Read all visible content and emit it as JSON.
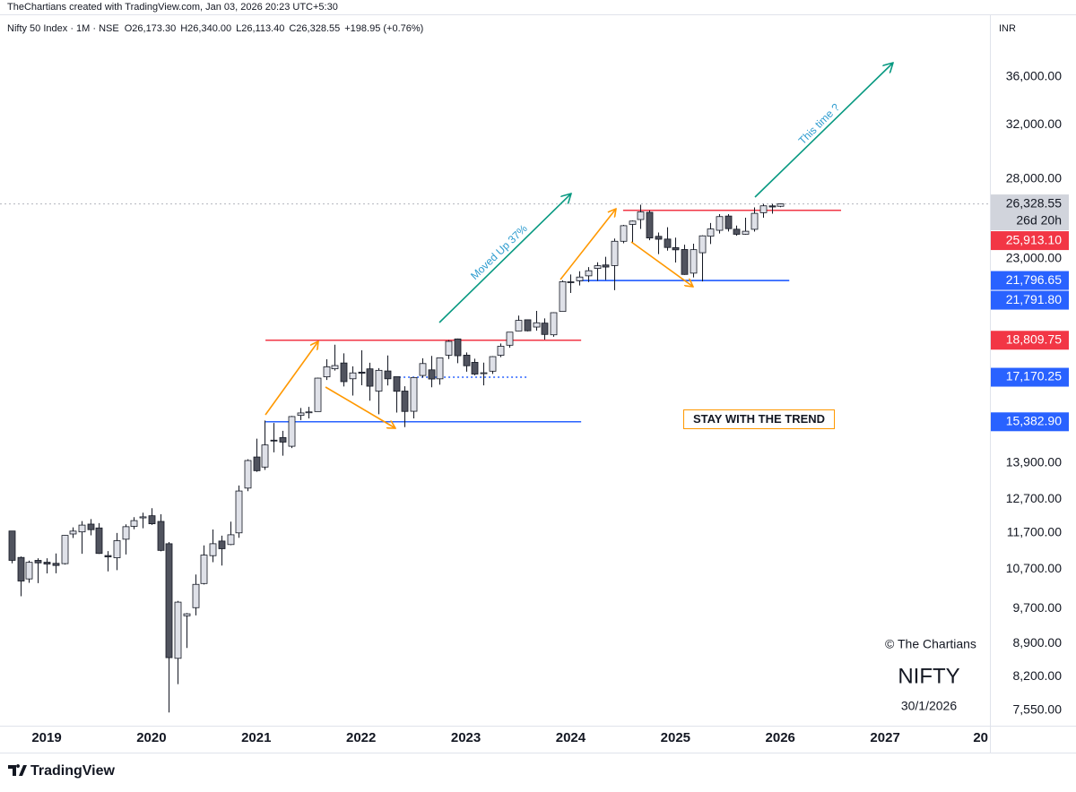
{
  "chart_data": {
    "type": "candlestick",
    "attribution": "TheChartians created with TradingView.com, Jan 03, 2026 20:23 UTC+5:30",
    "symbol": "Nifty 50 Index · 1M · NSE",
    "header_quote": [
      "O26,173.30",
      "H26,340.00",
      "L26,113.40",
      "C26,328.55",
      "+198.95 (+0.76%)"
    ],
    "currency": "INR",
    "annotations": [
      "Moved Up 37%",
      "This time ?",
      "STAY WITH THE TREND"
    ],
    "watermark": [
      "© The Chartians",
      "NIFTY",
      "30/1/2026"
    ],
    "footer": "TradingView",
    "log_scale": true,
    "grid": false,
    "xlim": [
      2018.555,
      2028.0
    ],
    "xticks": [
      2019,
      2020,
      2021,
      2022,
      2023,
      2024,
      2025,
      2026,
      2027,
      {
        "value": 2028,
        "label": "20"
      }
    ],
    "ylim": [
      7270,
      41650
    ],
    "yticks": [
      {
        "value": 7550,
        "label": "7,550.00"
      },
      {
        "value": 8200,
        "label": "8,200.00"
      },
      {
        "value": 8900,
        "label": "8,900.00"
      },
      {
        "value": 9700,
        "label": "9,700.00"
      },
      {
        "value": 10700,
        "label": "10,700.00"
      },
      {
        "value": 11700,
        "label": "11,700.00"
      },
      {
        "value": 12700,
        "label": "12,700.00"
      },
      {
        "value": 13900,
        "label": "13,900.00"
      },
      {
        "value": 23000,
        "label": "23,000.00"
      },
      {
        "value": 28000,
        "label": "28,000.00"
      },
      {
        "value": 32000,
        "label": "32,000.00"
      },
      {
        "value": 36000,
        "label": "36,000.00"
      }
    ],
    "up_color": "#dfe1e8",
    "down_color": "#50535e",
    "outline_color": "#131722",
    "price_labels": [
      {
        "value": 26328.55,
        "label": "26,328.55",
        "sub": "26d 20h",
        "color": "#d1d4dc",
        "text_color": "#131722",
        "line": "dotted"
      },
      {
        "value": 25913.1,
        "label": "25,913.10",
        "color": "#f23645",
        "text_color": "#ffffff",
        "line": "solid",
        "from": 2024.5,
        "to": 2026.58
      },
      {
        "value": 21796.65,
        "label": "21,796.65",
        "color": "#2962ff",
        "text_color": "#ffffff",
        "line": "solid",
        "from": 2024.074,
        "to": 2026.085
      },
      {
        "value": 21791.8,
        "label": "21,791.80",
        "color": "#2962ff",
        "text_color": "#ffffff",
        "line": "solid",
        "from": 2024.074,
        "to": 2026.085
      },
      {
        "value": 18809.75,
        "label": "18,809.75",
        "color": "#f23645",
        "text_color": "#ffffff",
        "line": "solid",
        "from": 2021.088,
        "to": 2024.1
      },
      {
        "value": 17170.25,
        "label": "17,170.25",
        "color": "#2962ff",
        "text_color": "#ffffff",
        "line": "dotted",
        "from": 2022.32,
        "to": 2023.586
      },
      {
        "value": 15382.9,
        "label": "15,382.90",
        "color": "#2962ff",
        "text_color": "#ffffff",
        "line": "solid",
        "from": 2021.088,
        "to": 2024.1
      }
    ],
    "x": [
      2018.667,
      2018.75,
      2018.833,
      2018.917,
      2019.0,
      2019.083,
      2019.167,
      2019.25,
      2019.333,
      2019.417,
      2019.5,
      2019.583,
      2019.667,
      2019.75,
      2019.833,
      2019.917,
      2020.0,
      2020.083,
      2020.167,
      2020.25,
      2020.333,
      2020.417,
      2020.5,
      2020.583,
      2020.667,
      2020.75,
      2020.833,
      2020.917,
      2021.0,
      2021.083,
      2021.167,
      2021.25,
      2021.333,
      2021.417,
      2021.5,
      2021.583,
      2021.667,
      2021.75,
      2021.833,
      2021.917,
      2022.0,
      2022.083,
      2022.167,
      2022.25,
      2022.333,
      2022.417,
      2022.5,
      2022.583,
      2022.667,
      2022.75,
      2022.833,
      2022.917,
      2023.0,
      2023.083,
      2023.167,
      2023.25,
      2023.333,
      2023.417,
      2023.5,
      2023.583,
      2023.667,
      2023.75,
      2023.833,
      2023.917,
      2024.0,
      2024.083,
      2024.167,
      2024.25,
      2024.333,
      2024.417,
      2024.5,
      2024.583,
      2024.667,
      2024.75,
      2024.833,
      2024.917,
      2025.0,
      2025.083,
      2025.167,
      2025.25,
      2025.333,
      2025.417,
      2025.5,
      2025.583,
      2025.667,
      2025.75,
      2025.833,
      2025.917,
      2026.0
    ],
    "open": [
      11751,
      11009,
      10441,
      10930,
      10881,
      10851,
      10842,
      11665,
      11725,
      11953,
      11840,
      11061,
      11000,
      11515,
      11886,
      12137,
      12202,
      12032,
      11388,
      8584,
      9533,
      9726,
      10323,
      11057,
      11464,
      11365,
      11697,
      13062,
      14104,
      13758,
      14702,
      14798,
      14482,
      15630,
      15755,
      15776,
      17186,
      17531,
      17784,
      17104,
      17388,
      17529,
      16593,
      17437,
      17193,
      16594,
      15787,
      17244,
      17486,
      17102,
      18130,
      18871,
      18131,
      17812,
      17360,
      17427,
      18124,
      18580,
      19246,
      19784,
      19432,
      19622,
      19064,
      20194,
      21727,
      21780,
      22048,
      22455,
      22648,
      22614,
      24010,
      25030,
      25333,
      25788,
      24304,
      24141,
      23637,
      23528,
      22195,
      23341,
      24311,
      24669,
      25551,
      24735,
      24433,
      24729,
      25764,
      26200,
      26173.3
    ],
    "high": [
      11751,
      11035,
      10922,
      10985,
      10987,
      11118,
      11630,
      11856,
      12041,
      12103,
      11981,
      11181,
      11695,
      11945,
      12159,
      12294,
      12431,
      12246,
      11434,
      9889,
      9598,
      10554,
      11341,
      11794,
      11618,
      12025,
      13146,
      14024,
      14754,
      15432,
      15337,
      15045,
      15607,
      15916,
      15962,
      17153,
      17947,
      18604,
      18210,
      17639,
      18350,
      17794,
      17559,
      18115,
      17132,
      16794,
      17172,
      17992,
      18096,
      18022,
      18816,
      18887,
      18251,
      17972,
      17799,
      18089,
      18662,
      19201,
      19991,
      19796,
      20222,
      19849,
      20158,
      21801,
      22124,
      22297,
      22526,
      22795,
      23111,
      24174,
      24999,
      25268,
      26277,
      25908,
      24538,
      24858,
      24226,
      23807,
      23870,
      24365,
      25116,
      25669,
      25669,
      24956,
      25449,
      26104,
      26325,
      26326,
      26340.0
    ],
    "low": [
      10850,
      10005,
      10341,
      10333,
      10583,
      10586,
      10817,
      11549,
      11108,
      11625,
      11107,
      10637,
      10670,
      11090,
      11802,
      11832,
      11929,
      11175,
      7511,
      8055,
      8807,
      9544,
      10299,
      10882,
      10790,
      11347,
      11557,
      12963,
      13597,
      13662,
      14265,
      14151,
      14416,
      15450,
      15513,
      15776,
      17055,
      17452,
      16782,
      16410,
      16836,
      16203,
      15671,
      16825,
      15735,
      15183,
      15511,
      17154,
      16748,
      16855,
      17959,
      17774,
      17405,
      17255,
      16828,
      17312,
      18043,
      18464,
      19234,
      19223,
      19255,
      18838,
      18973,
      20183,
      21137,
      21530,
      21710,
      21777,
      21821,
      21281,
      23893,
      23894,
      24753,
      24074,
      23263,
      23460,
      22787,
      22105,
      21965,
      21744,
      23847,
      24474,
      24599,
      24337,
      24405,
      24588,
      25449,
      25700,
      26113.4
    ],
    "close": [
      10930,
      10387,
      10877,
      10863,
      10831,
      10793,
      11624,
      11748,
      11923,
      11789,
      11118,
      11023,
      11474,
      11877,
      12056,
      12168,
      11962,
      11202,
      8598,
      9860,
      9580,
      10302,
      11073,
      11388,
      11248,
      11642,
      12969,
      13982,
      13635,
      14529,
      14691,
      14631,
      15583,
      15722,
      15763,
      17132,
      17618,
      17672,
      16983,
      17354,
      17340,
      16794,
      17465,
      17103,
      16585,
      15780,
      17158,
      17759,
      17094,
      18012,
      18758,
      18105,
      17662,
      17304,
      17360,
      18065,
      18534,
      19189,
      19754,
      19254,
      19638,
      19080,
      20133,
      21731,
      21726,
      21983,
      22327,
      22605,
      22531,
      24011,
      24951,
      25236,
      25811,
      24205,
      24131,
      23645,
      23508,
      22125,
      23519,
      24334,
      24751,
      25517,
      24768,
      24427,
      24611,
      25722,
      26203,
      26130,
      26328.55
    ]
  }
}
